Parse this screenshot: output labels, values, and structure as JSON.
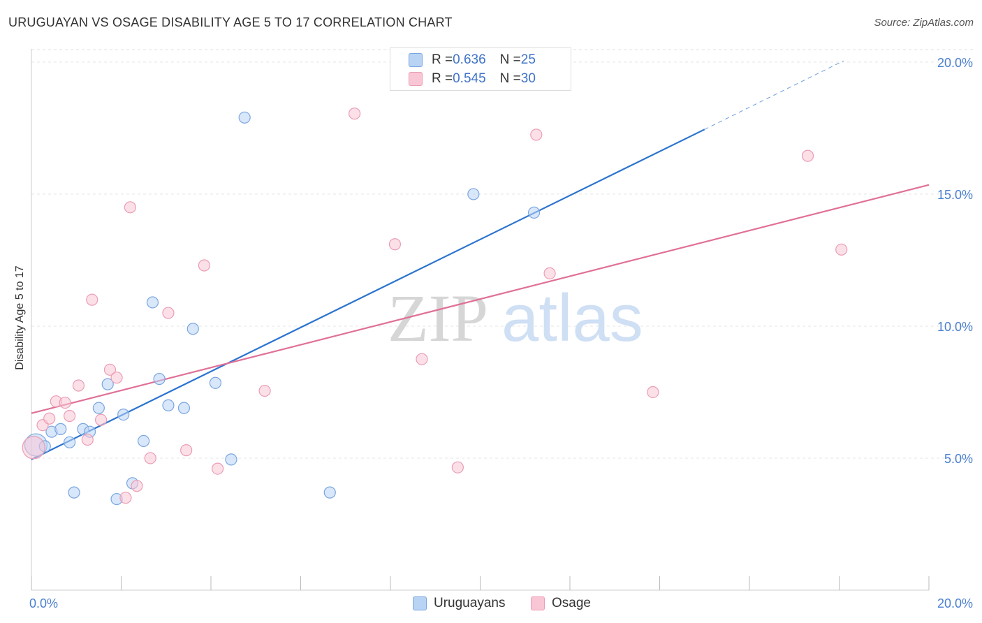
{
  "title": "URUGUAYAN VS OSAGE DISABILITY AGE 5 TO 17 CORRELATION CHART",
  "source": "Source: ZipAtlas.com",
  "watermark": {
    "zip": "ZIP",
    "atlas": "atlas"
  },
  "legend_top": [
    {
      "r_label": "R = ",
      "r_value": "0.636",
      "n_label": "N = ",
      "n_value": "25"
    },
    {
      "r_label": "R = ",
      "r_value": "0.545",
      "n_label": "N = ",
      "n_value": "30"
    }
  ],
  "colors": {
    "blue_fill": "#b9d3f5",
    "blue_stroke": "#7aa6e0",
    "blue_line": "#2b74cf",
    "pink_fill": "#f9c6d6",
    "pink_stroke": "#eb9db5",
    "pink_line": "#e07097",
    "axis_text": "#4a7fd0",
    "grid": "#e4e4e4"
  },
  "chart_data": {
    "type": "scatter",
    "title": "URUGUAYAN VS OSAGE DISABILITY AGE 5 TO 17 CORRELATION CHART",
    "xlabel": "",
    "ylabel": "Disability Age 5 to 17",
    "xlim": [
      0,
      20
    ],
    "ylim": [
      0,
      20.5
    ],
    "x_tick_labels": [
      {
        "value": 0,
        "label": "0.0%"
      },
      {
        "value": 20,
        "label": "20.0%"
      }
    ],
    "y_ticks": [
      {
        "value": 5,
        "label": "5.0%"
      },
      {
        "value": 10,
        "label": "10.0%"
      },
      {
        "value": 15,
        "label": "15.0%"
      },
      {
        "value": 20,
        "label": "20.0%"
      }
    ],
    "series": [
      {
        "name": "Uruguayans",
        "color": "blue",
        "points": [
          {
            "x": 0.1,
            "y": 5.5,
            "big": true
          },
          {
            "x": 0.3,
            "y": 5.45
          },
          {
            "x": 0.45,
            "y": 6.0
          },
          {
            "x": 0.65,
            "y": 6.1
          },
          {
            "x": 0.85,
            "y": 5.6
          },
          {
            "x": 0.95,
            "y": 3.7
          },
          {
            "x": 1.15,
            "y": 6.1
          },
          {
            "x": 1.3,
            "y": 6.0
          },
          {
            "x": 1.5,
            "y": 6.9
          },
          {
            "x": 1.7,
            "y": 7.8
          },
          {
            "x": 1.9,
            "y": 3.45
          },
          {
            "x": 2.05,
            "y": 6.65
          },
          {
            "x": 2.25,
            "y": 4.05
          },
          {
            "x": 2.5,
            "y": 5.65
          },
          {
            "x": 2.7,
            "y": 10.9
          },
          {
            "x": 2.85,
            "y": 8.0
          },
          {
            "x": 3.05,
            "y": 7.0
          },
          {
            "x": 3.4,
            "y": 6.9
          },
          {
            "x": 3.6,
            "y": 9.9
          },
          {
            "x": 4.1,
            "y": 7.85
          },
          {
            "x": 4.45,
            "y": 4.95
          },
          {
            "x": 4.75,
            "y": 17.9
          },
          {
            "x": 6.65,
            "y": 3.7
          },
          {
            "x": 9.85,
            "y": 15.0
          },
          {
            "x": 11.2,
            "y": 14.3
          }
        ],
        "trendline": {
          "x0": 0,
          "y0": 4.95,
          "x1": 15.0,
          "y1": 17.45,
          "dashed_to_x": 18.1,
          "dashed_to_y": 20.05
        }
      },
      {
        "name": "Osage",
        "color": "pink",
        "points": [
          {
            "x": 0.05,
            "y": 5.4,
            "big": true
          },
          {
            "x": 0.25,
            "y": 6.25
          },
          {
            "x": 0.4,
            "y": 6.5
          },
          {
            "x": 0.55,
            "y": 7.15
          },
          {
            "x": 0.75,
            "y": 7.1
          },
          {
            "x": 0.85,
            "y": 6.6
          },
          {
            "x": 1.05,
            "y": 7.75
          },
          {
            "x": 1.25,
            "y": 5.7
          },
          {
            "x": 1.35,
            "y": 11.0
          },
          {
            "x": 1.55,
            "y": 6.45
          },
          {
            "x": 1.75,
            "y": 8.35
          },
          {
            "x": 1.9,
            "y": 8.05
          },
          {
            "x": 2.1,
            "y": 3.5
          },
          {
            "x": 2.2,
            "y": 14.5
          },
          {
            "x": 2.35,
            "y": 3.95
          },
          {
            "x": 2.65,
            "y": 5.0
          },
          {
            "x": 3.05,
            "y": 10.5
          },
          {
            "x": 3.45,
            "y": 5.3
          },
          {
            "x": 3.85,
            "y": 12.3
          },
          {
            "x": 4.15,
            "y": 4.6
          },
          {
            "x": 5.2,
            "y": 7.55
          },
          {
            "x": 7.2,
            "y": 18.05
          },
          {
            "x": 8.1,
            "y": 13.1
          },
          {
            "x": 8.7,
            "y": 8.75
          },
          {
            "x": 9.5,
            "y": 4.65
          },
          {
            "x": 11.25,
            "y": 17.25
          },
          {
            "x": 11.55,
            "y": 12.0
          },
          {
            "x": 13.85,
            "y": 7.5
          },
          {
            "x": 17.3,
            "y": 16.45
          },
          {
            "x": 18.05,
            "y": 12.9
          }
        ],
        "trendline": {
          "x0": 0,
          "y0": 6.7,
          "x1": 20.0,
          "y1": 15.35
        }
      }
    ]
  }
}
